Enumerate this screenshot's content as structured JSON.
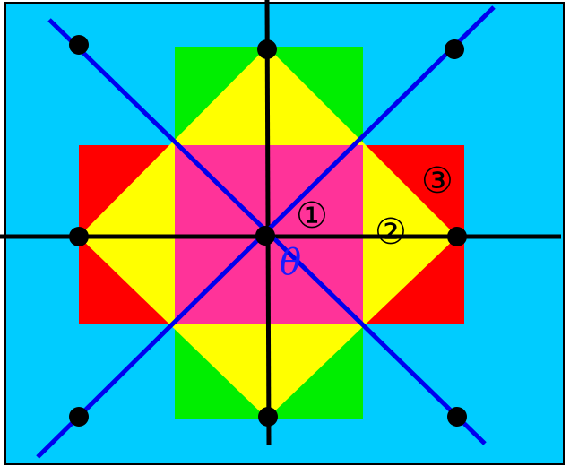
{
  "labels": {
    "region_1": "①",
    "region_2": "②",
    "region_3": "③",
    "angle": "θ"
  },
  "colors": {
    "background": "#00ccff",
    "green": "#00ee00",
    "red": "#ff0000",
    "yellow": "#ffff00",
    "pink": "#ff3399",
    "axis": "#000000",
    "diagonal": "#0000ee",
    "dot": "#000000",
    "frame": "#000000"
  }
}
